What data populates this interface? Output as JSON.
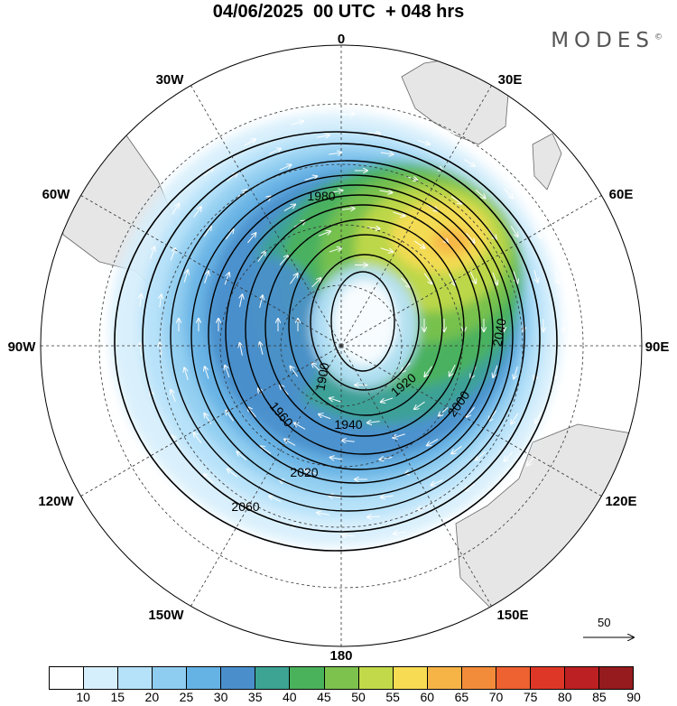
{
  "title": "04/06/2025  00 UTC  + 048 hrs",
  "brand": "MODES",
  "brand_mark": "©",
  "longitude_labels": {
    "n": "0",
    "ne": "30E",
    "ene": "60E",
    "e": "90E",
    "ese": "120E",
    "se": "150E",
    "s": "180",
    "sw": "150W",
    "wsw": "120W",
    "w": "90W",
    "wnw": "60W",
    "nw": "30W"
  },
  "contour_labels": [
    "1900",
    "1920",
    "1940",
    "1960",
    "1980",
    "2000",
    "2020",
    "2040",
    "2060"
  ],
  "vector_reference": {
    "label": "50",
    "value": 50
  },
  "colorbar": {
    "ticks": [
      "10",
      "15",
      "20",
      "25",
      "30",
      "35",
      "40",
      "45",
      "50",
      "55",
      "60",
      "65",
      "70",
      "75",
      "80",
      "85",
      "90"
    ],
    "colors": [
      "#ffffff",
      "#d6effc",
      "#b5e1f9",
      "#8fcdf0",
      "#65b2e4",
      "#4a8fcc",
      "#3da393",
      "#49b25a",
      "#7cc24c",
      "#c2d94a",
      "#f7dc53",
      "#f6b447",
      "#f28c3a",
      "#ee6130",
      "#de3728",
      "#bc2023",
      "#951b1e"
    ]
  },
  "map_colors": {
    "land": "#e6e6e6",
    "coast": "#666666",
    "grid": "#333333"
  }
}
